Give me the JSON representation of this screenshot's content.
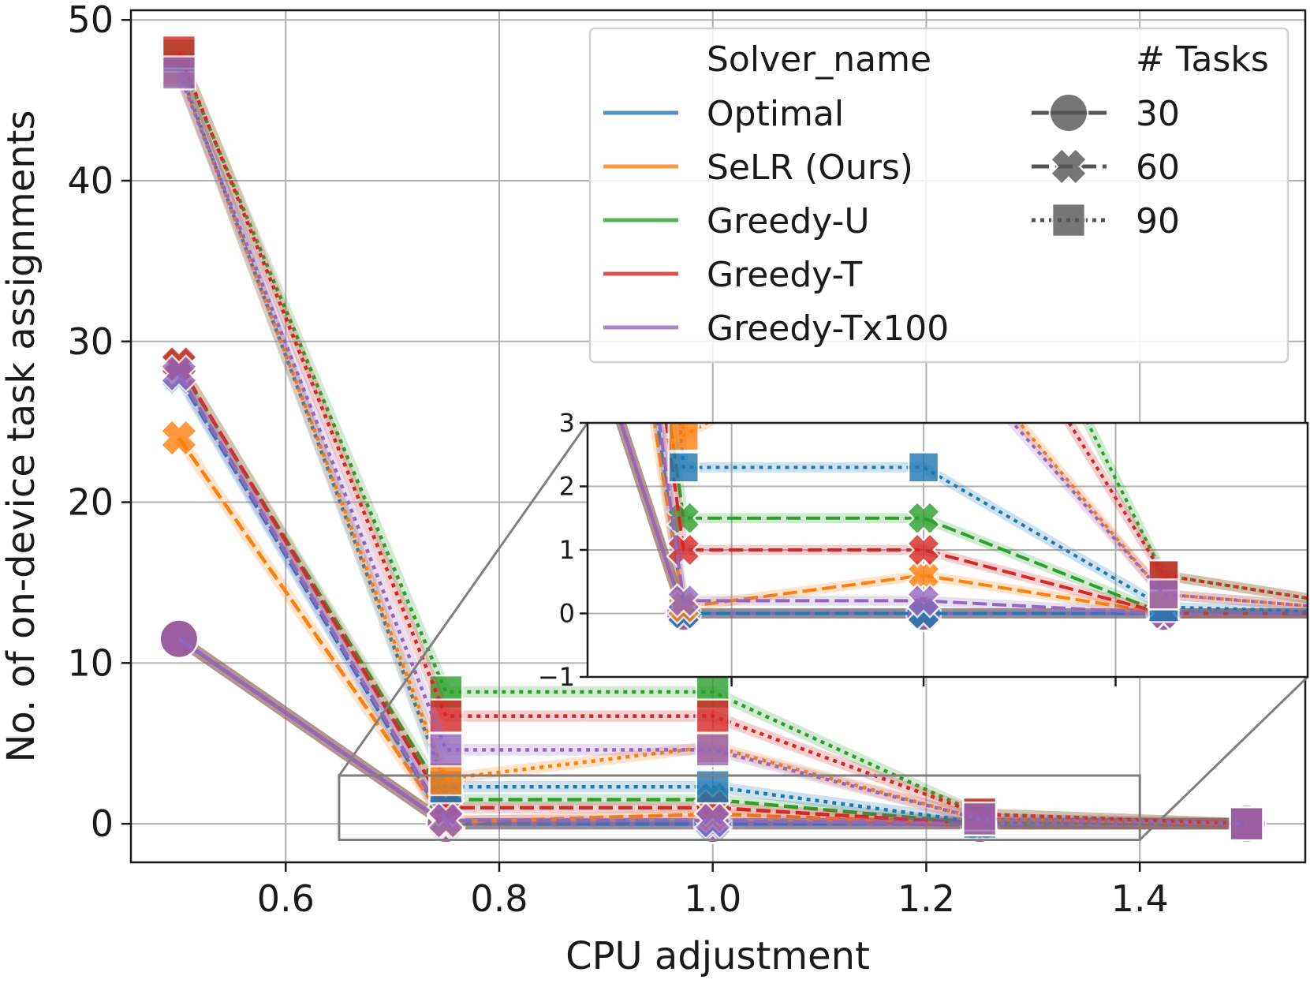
{
  "chart_data": {
    "type": "line",
    "xlabel": "CPU adjustment",
    "ylabel": "No. of on-device task assignments",
    "xlim": [
      0.455,
      1.555
    ],
    "ylim": [
      -2.4,
      50.6
    ],
    "xticks": [
      0.6,
      0.8,
      1.0,
      1.2,
      1.4
    ],
    "xtick_labels": [
      "0.6",
      "0.8",
      "1.0",
      "1.2",
      "1.4"
    ],
    "yticks": [
      0,
      10,
      20,
      30,
      40,
      50
    ],
    "ytick_labels": [
      "0",
      "10",
      "20",
      "30",
      "40",
      "50"
    ],
    "grid": true,
    "x": [
      0.5,
      0.75,
      1.0,
      1.25,
      1.5
    ],
    "legend": {
      "location": "top-right",
      "hue_title": "Solver_name",
      "style_title": "# Tasks",
      "solvers": [
        {
          "name": "Optimal",
          "color": "#1f77b4"
        },
        {
          "name": "SeLR (Ours)",
          "color": "#ff7f0e"
        },
        {
          "name": "Greedy-U",
          "color": "#2ca02c"
        },
        {
          "name": "Greedy-T",
          "color": "#d62728"
        },
        {
          "name": "Greedy-Tx100",
          "color": "#9467bd"
        }
      ],
      "tasks": [
        {
          "label": "30",
          "marker": "circle",
          "dash": "solid"
        },
        {
          "label": "60",
          "marker": "x",
          "dash": "dashed"
        },
        {
          "label": "90",
          "marker": "square",
          "dash": "dotted"
        }
      ]
    },
    "series": [
      {
        "solver": "Optimal",
        "tasks": "30",
        "values": [
          11.5,
          0,
          0,
          0,
          0
        ]
      },
      {
        "solver": "Optimal",
        "tasks": "60",
        "values": [
          27.8,
          0,
          0,
          0,
          0
        ]
      },
      {
        "solver": "Optimal",
        "tasks": "90",
        "values": [
          47.0,
          2.3,
          2.3,
          0.1,
          0
        ]
      },
      {
        "solver": "SeLR (Ours)",
        "tasks": "30",
        "values": [
          11.5,
          0,
          0,
          0,
          0
        ]
      },
      {
        "solver": "SeLR (Ours)",
        "tasks": "60",
        "values": [
          24.0,
          0.1,
          0.6,
          0,
          0
        ]
      },
      {
        "solver": "SeLR (Ours)",
        "tasks": "90",
        "values": [
          46.8,
          2.8,
          4.8,
          0.3,
          0
        ]
      },
      {
        "solver": "Greedy-U",
        "tasks": "30",
        "values": [
          11.5,
          0,
          0,
          0,
          0
        ]
      },
      {
        "solver": "Greedy-U",
        "tasks": "60",
        "values": [
          28.5,
          1.5,
          1.5,
          0,
          0
        ]
      },
      {
        "solver": "Greedy-U",
        "tasks": "90",
        "values": [
          47.8,
          8.2,
          8.2,
          0.6,
          0
        ]
      },
      {
        "solver": "Greedy-T",
        "tasks": "30",
        "values": [
          11.5,
          0,
          0,
          0,
          0
        ]
      },
      {
        "solver": "Greedy-T",
        "tasks": "60",
        "values": [
          28.6,
          1.0,
          1.0,
          0,
          0
        ]
      },
      {
        "solver": "Greedy-T",
        "tasks": "90",
        "values": [
          48.0,
          6.7,
          6.7,
          0.6,
          0
        ]
      },
      {
        "solver": "Greedy-Tx100",
        "tasks": "30",
        "values": [
          11.5,
          0,
          0,
          0,
          0
        ]
      },
      {
        "solver": "Greedy-Tx100",
        "tasks": "60",
        "values": [
          28.0,
          0.2,
          0.2,
          0,
          0
        ]
      },
      {
        "solver": "Greedy-Tx100",
        "tasks": "90",
        "values": [
          46.7,
          4.6,
          4.6,
          0.3,
          0
        ]
      }
    ],
    "inset": {
      "xlim": [
        0.65,
        1.4
      ],
      "ylim": [
        -1,
        3
      ],
      "yticks": [
        -1,
        0,
        1,
        2,
        3
      ],
      "ytick_labels": [
        "−1",
        "0",
        "1",
        "2",
        "3"
      ]
    }
  }
}
